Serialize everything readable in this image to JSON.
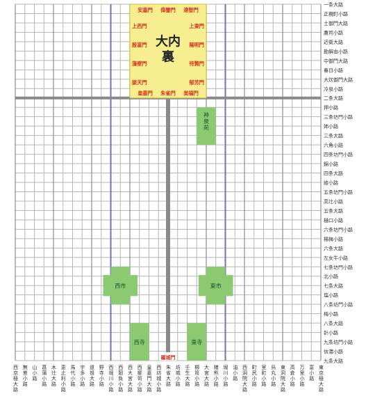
{
  "palace": {
    "name": "大内裏",
    "gates": {
      "top": [
        "安嘉門",
        "偉鑒門",
        "達智門"
      ],
      "left": [
        "上西門",
        "殷富門",
        "藻壁門",
        "談天門"
      ],
      "right": [
        "上東門",
        "陽明門",
        "待賢門",
        "郁芳門"
      ],
      "bottom": [
        "皇嘉門",
        "朱雀門",
        "美福門"
      ]
    }
  },
  "places": {
    "shinsenen": "神泉苑",
    "west_market": "西市",
    "east_market": "東市",
    "west_temple": "西寺",
    "east_temple": "東寺",
    "rashomon": "羅城門"
  },
  "streets_ew": [
    "一条大路",
    "正親町小路",
    "土御門大路",
    "鷹司小路",
    "近衛大路",
    "勘解由小路",
    "中御門大路",
    "春日小路",
    "大炊御門大路",
    "冷泉小路",
    "二条大路",
    "押小路",
    "三条坊門小路",
    "姉小路",
    "三条大路",
    "六角小路",
    "四条坊門小路",
    "錦小路",
    "四条大路",
    "綾小路",
    "五条坊門小路",
    "高辻小路",
    "五条大路",
    "樋口小路",
    "六条坊門小路",
    "楊梅小路",
    "六条大路",
    "左女牛小路",
    "七条坊門小路",
    "北小路",
    "七条大路",
    "塩小路",
    "八条坊門小路",
    "梅小路",
    "八条大路",
    "針小路",
    "九条坊門小路",
    "信濃小路",
    "九条大路"
  ],
  "streets_ns": [
    "西京極大路",
    "無差小路",
    "山小路",
    "菖蒲小路",
    "木辻大路",
    "恵止利小路",
    "馬代小路",
    "宇多小路",
    "道祖大路",
    "野寺小路",
    "西堀川小路",
    "西靭負小路",
    "西大宮大路",
    "西櫛笥小路",
    "皇嘉門大路",
    "西坊城小路",
    "朱雀大路",
    "坊城小路",
    "壬生大路",
    "櫛笥小路",
    "大宮大路",
    "猪熊小路",
    "堀川小路",
    "油小路",
    "西洞院大路",
    "町尻小路",
    "室町小路",
    "烏丸小路",
    "東洞院大路",
    "高倉小路",
    "万里小路",
    "富小路",
    "東京極大路"
  ],
  "colors": {
    "palace_fill": "#f7ef8f",
    "gate_text": "#d8301e",
    "place_fill": "#8cca72",
    "place_text": "#15552a",
    "major_ns": "#6f76b8",
    "suzaku": "#8a8a8a",
    "grid": "#b5b5b5",
    "text": "#333333"
  }
}
